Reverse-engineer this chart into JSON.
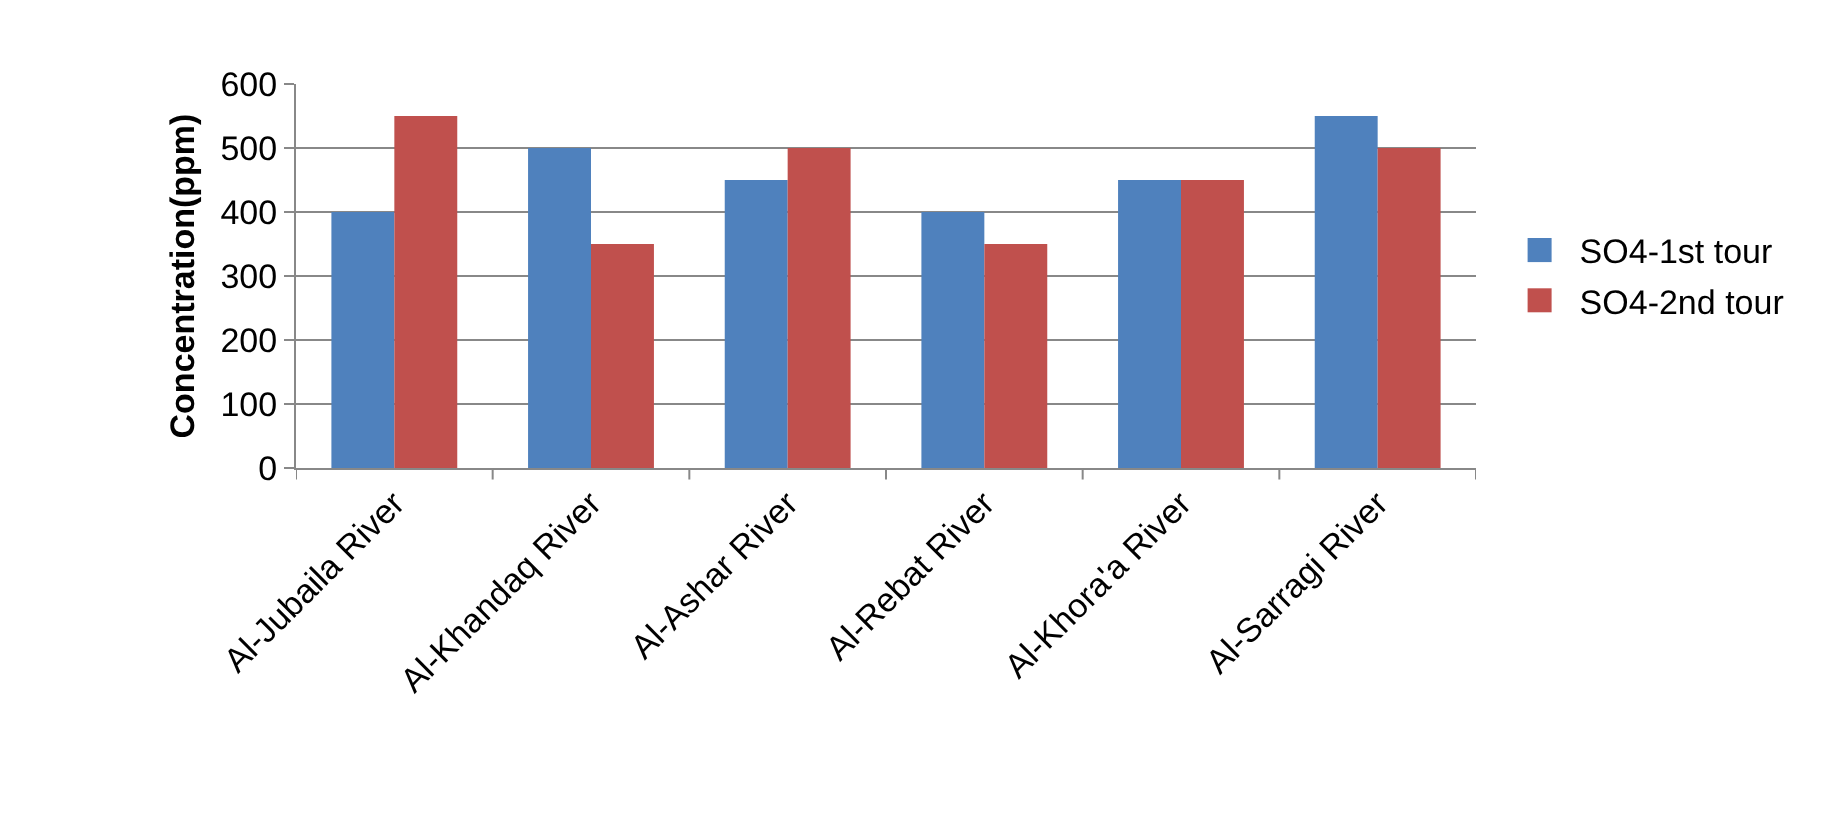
{
  "chart_data": {
    "type": "bar",
    "ylabel": "Concentration(ppm)",
    "categories": [
      "Al-Jubaila River",
      "Al-Khandaq River",
      "Al-Ashar River",
      "Al-Rebat River",
      "Al-Khora'a River",
      "Al-Sarragi River"
    ],
    "series": [
      {
        "name": "SO4-1st tour",
        "color": "#4f81bd",
        "values": [
          400,
          500,
          450,
          400,
          450,
          550
        ]
      },
      {
        "name": "SO4-2nd tour",
        "color": "#c0504d",
        "values": [
          550,
          350,
          500,
          350,
          450,
          500
        ]
      }
    ],
    "ylim": [
      0,
      600
    ],
    "yticks": [
      0,
      100,
      200,
      300,
      400,
      500,
      600
    ],
    "grid": "y",
    "legend": "right"
  }
}
